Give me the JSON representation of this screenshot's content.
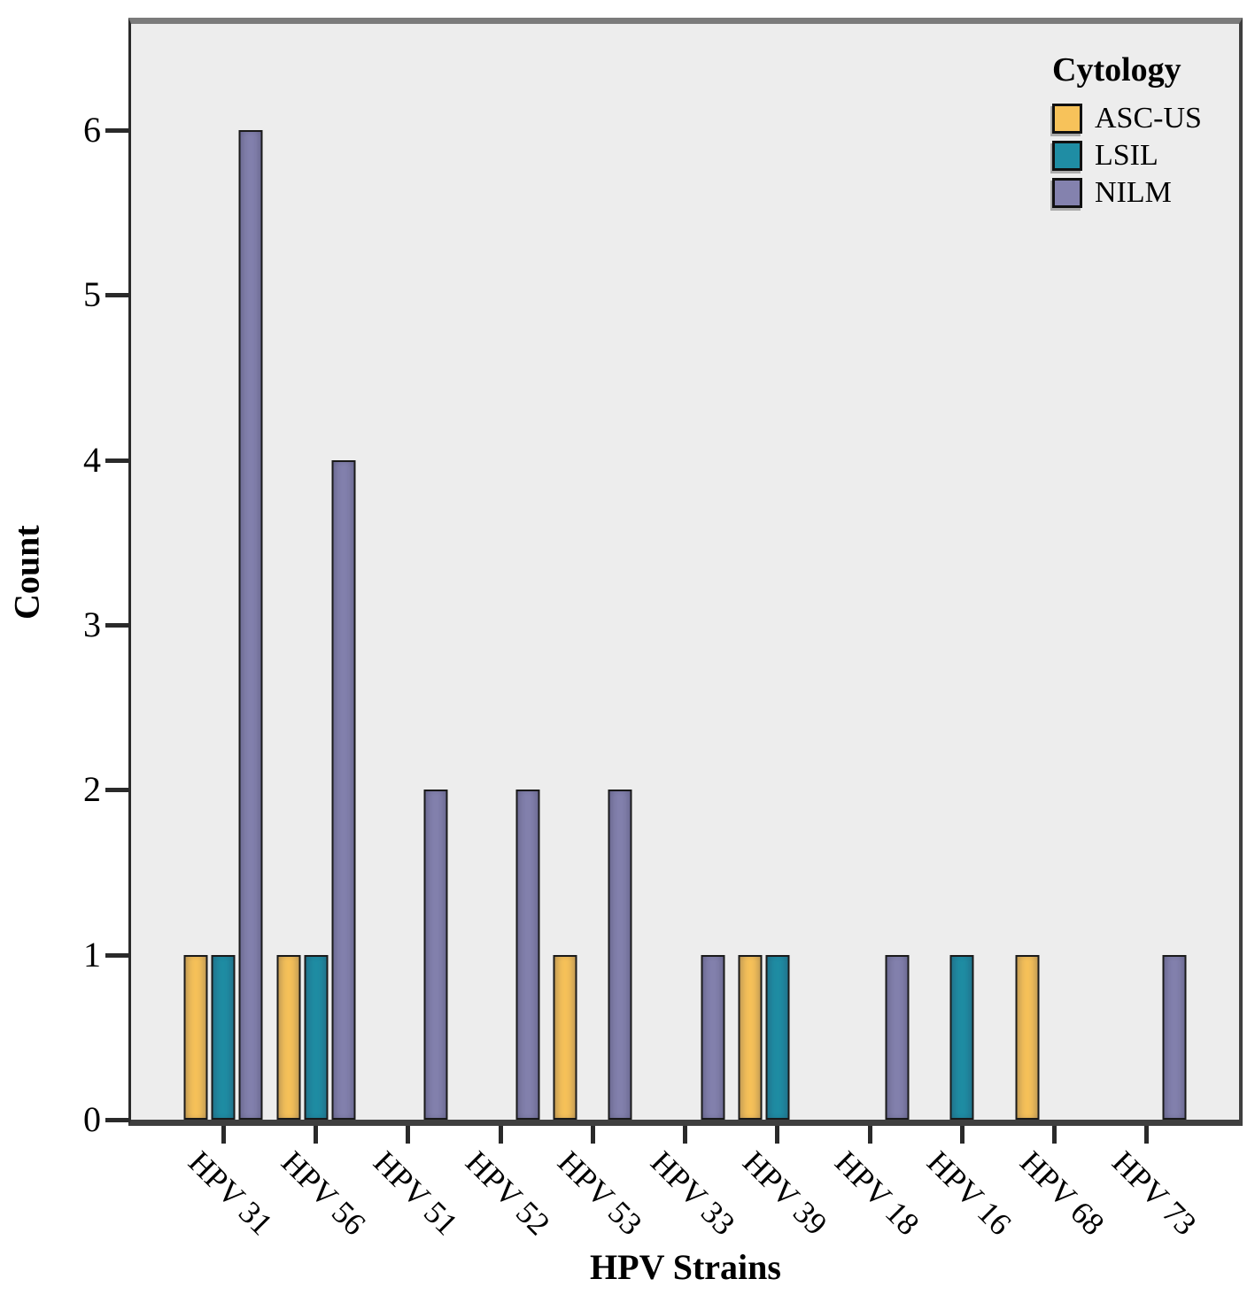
{
  "chart_data": {
    "type": "bar",
    "subtype": "grouped-vertical",
    "title": "",
    "xlabel": "HPV Strains",
    "ylabel": "Count",
    "legend_title": "Cytology",
    "legend_position": "top-right-inside",
    "grid": false,
    "plot_background": "#EDEDED",
    "ylim": [
      0,
      6
    ],
    "yticks": [
      0,
      1,
      2,
      3,
      4,
      5,
      6
    ],
    "categories": [
      "HPV 31",
      "HPV 56",
      "HPV 51",
      "HPV 52",
      "HPV 53",
      "HPV 33",
      "HPV 39",
      "HPV 18",
      "HPV 16",
      "HPV 68",
      "HPV 73"
    ],
    "series": [
      {
        "name": "ASC-US",
        "color": "#F7C25A",
        "values": [
          1,
          1,
          0,
          0,
          1,
          0,
          1,
          0,
          0,
          1,
          0
        ]
      },
      {
        "name": "LSIL",
        "color": "#1F8DA4",
        "values": [
          1,
          1,
          0,
          0,
          0,
          0,
          1,
          0,
          1,
          0,
          0
        ]
      },
      {
        "name": "NILM",
        "color": "#8482AE",
        "values": [
          6,
          4,
          2,
          2,
          2,
          1,
          0,
          1,
          0,
          0,
          1
        ]
      }
    ]
  }
}
